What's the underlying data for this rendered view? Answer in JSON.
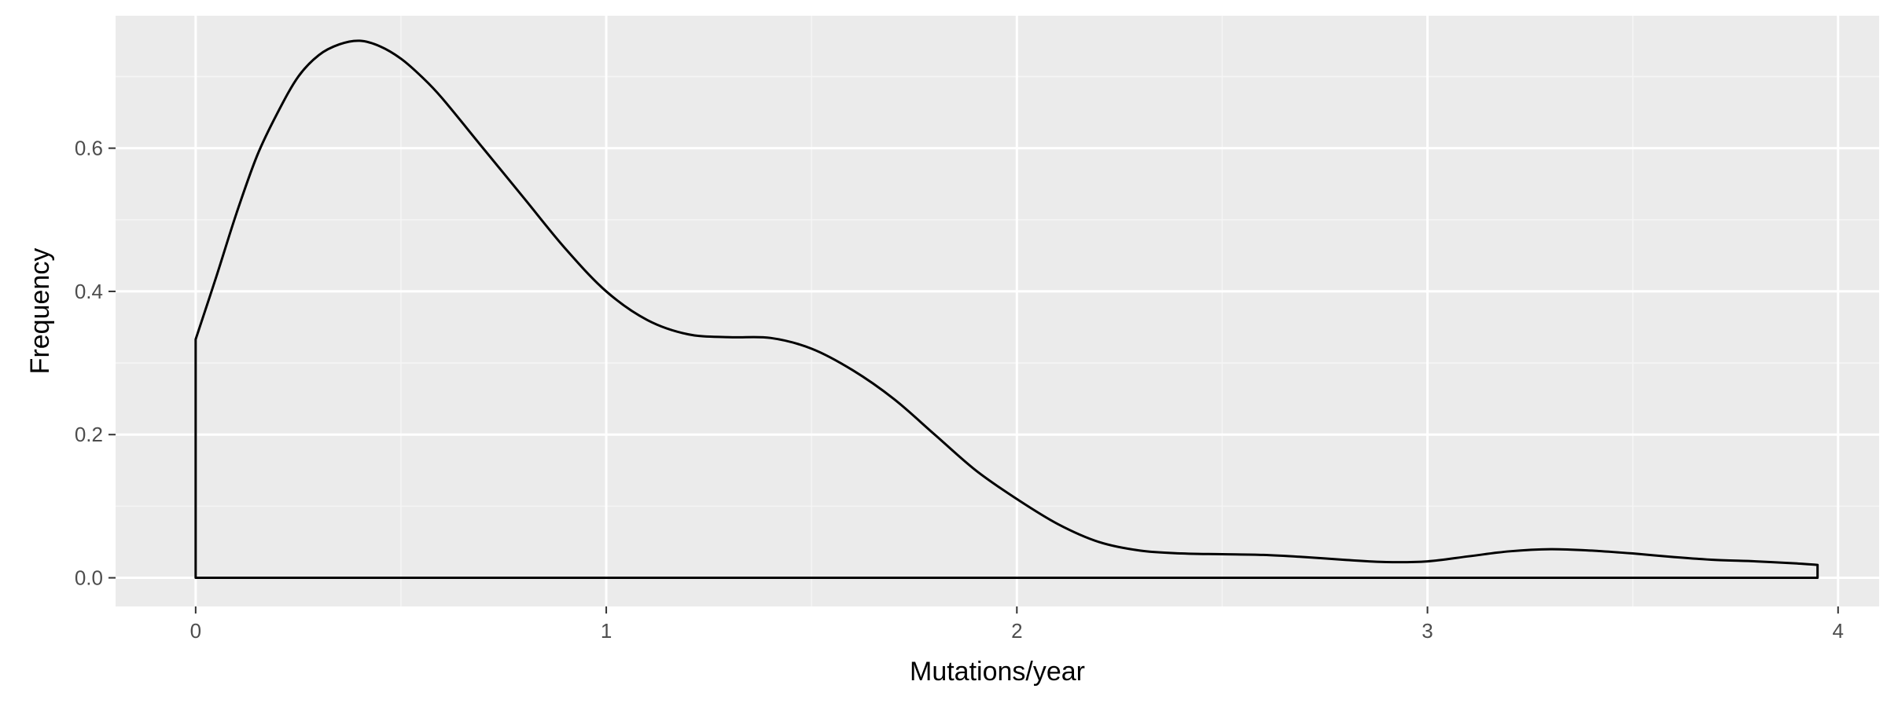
{
  "chart_data": {
    "type": "area",
    "title": "",
    "xlabel": "Mutations/year",
    "ylabel": "Frequency",
    "xlim": [
      -0.195,
      4.1
    ],
    "ylim": [
      -0.04,
      0.785
    ],
    "x_ticks": [
      0,
      1,
      2,
      3,
      4
    ],
    "x_tick_labels": [
      "0",
      "1",
      "2",
      "3",
      "4"
    ],
    "y_ticks": [
      0.0,
      0.2,
      0.4,
      0.6
    ],
    "y_tick_labels": [
      "0.0",
      "0.2",
      "0.4",
      "0.6"
    ],
    "grid": true,
    "legend": "none",
    "series": [
      {
        "x": [
          0,
          0.05,
          0.1,
          0.15,
          0.2,
          0.25,
          0.3,
          0.35,
          0.4,
          0.45,
          0.5,
          0.55,
          0.6,
          0.7,
          0.8,
          0.9,
          1.0,
          1.1,
          1.2,
          1.3,
          1.4,
          1.5,
          1.6,
          1.7,
          1.8,
          1.9,
          2.0,
          2.1,
          2.2,
          2.3,
          2.4,
          2.5,
          2.6,
          2.7,
          2.8,
          2.9,
          3.0,
          3.1,
          3.2,
          3.3,
          3.4,
          3.5,
          3.6,
          3.7,
          3.8,
          3.9,
          3.95
        ],
        "y": [
          0.333,
          0.42,
          0.51,
          0.59,
          0.65,
          0.7,
          0.73,
          0.745,
          0.75,
          0.742,
          0.725,
          0.7,
          0.67,
          0.6,
          0.53,
          0.46,
          0.4,
          0.36,
          0.34,
          0.336,
          0.335,
          0.32,
          0.29,
          0.25,
          0.2,
          0.15,
          0.11,
          0.075,
          0.05,
          0.038,
          0.034,
          0.033,
          0.032,
          0.029,
          0.025,
          0.022,
          0.023,
          0.03,
          0.037,
          0.04,
          0.038,
          0.034,
          0.029,
          0.025,
          0.023,
          0.02,
          0.018
        ]
      }
    ],
    "colors": {
      "panel_background": "#ebebeb",
      "grid_major": "#ffffff",
      "grid_minor": "#f5f5f5",
      "line": "#000000",
      "fill": "#ebebeb"
    }
  }
}
